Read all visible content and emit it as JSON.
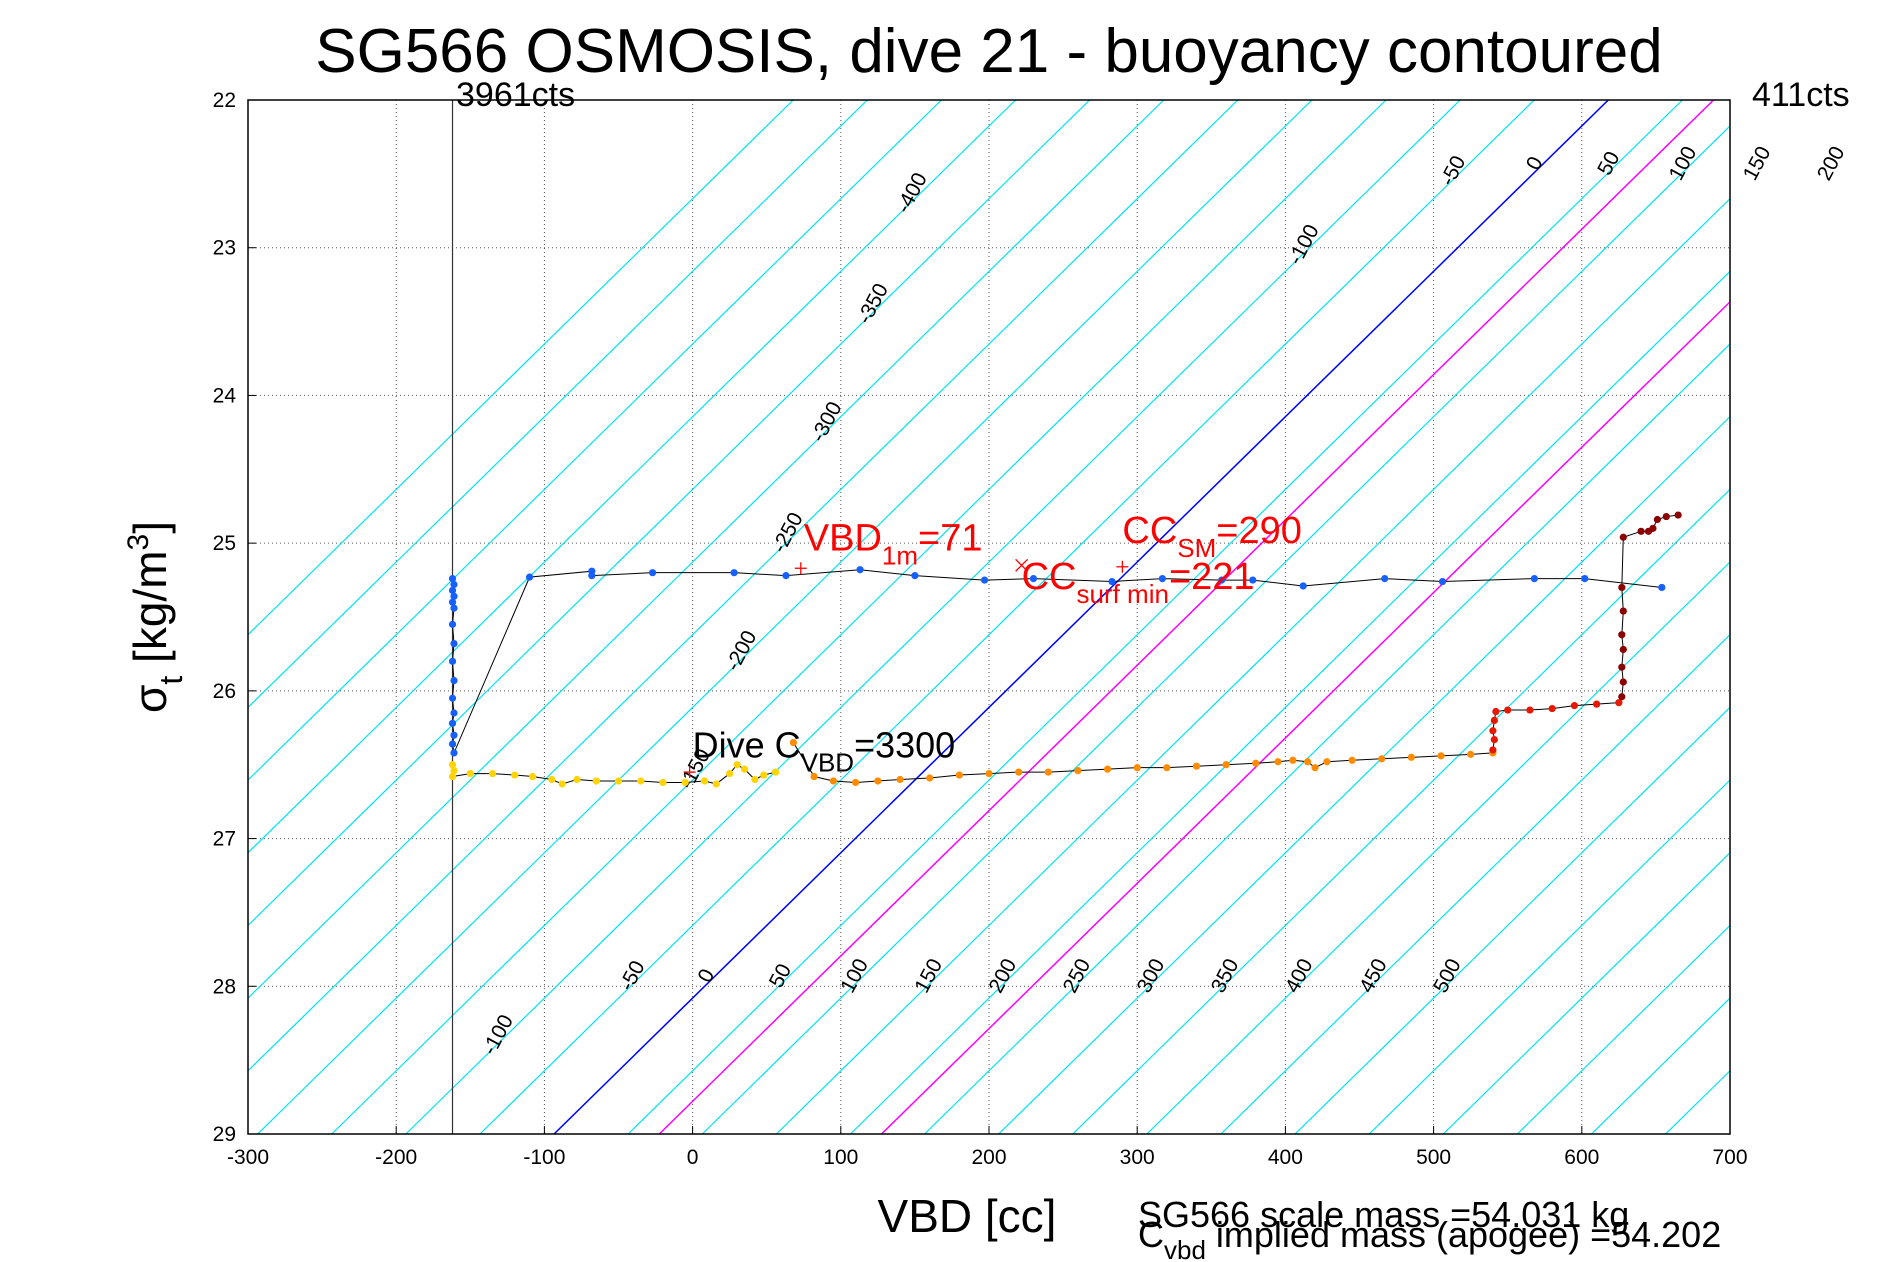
{
  "chart_data": {
    "type": "scatter",
    "title": "SG566 OSMOSIS, dive 21 - buoyancy contoured",
    "xlabel": "VBD [cc]",
    "ylabel": {
      "base": "σ",
      "sub": "t",
      "rest": " [kg/m",
      "sup": "3",
      "close": "]"
    },
    "xlim": [
      -300,
      700
    ],
    "ylim": [
      22,
      29
    ],
    "y_reversed": true,
    "xticks": [
      -300,
      -200,
      -100,
      0,
      100,
      200,
      300,
      400,
      500,
      600,
      700
    ],
    "yticks": [
      22,
      23,
      24,
      25,
      26,
      27,
      28,
      29
    ],
    "grid": true,
    "vbd_counts_labels": {
      "left": "3961cts",
      "right": "411cts"
    },
    "vbd_counts_line_x": -162,
    "contours": {
      "slope_sigma_per_cc": 0.00984,
      "upper_values": [
        -400,
        -350,
        -300,
        -250,
        -200,
        -150,
        -100,
        -50,
        0,
        50,
        100,
        150,
        200,
        250,
        300,
        350,
        400,
        450,
        500
      ],
      "lower_values": [
        -100,
        -50,
        0,
        50,
        100,
        150,
        200,
        250,
        300,
        350,
        400,
        450,
        500
      ],
      "background_values": [
        -550,
        -500,
        -450,
        -400,
        -350,
        -300,
        -250,
        -200,
        -150,
        -100,
        -50,
        0,
        50,
        100,
        150,
        200,
        250,
        300,
        350,
        400,
        450,
        500,
        550,
        600,
        650,
        700,
        750,
        800
      ],
      "blue_line_values": [
        0
      ],
      "magenta_line_values": [
        71,
        221
      ],
      "colors": {
        "background": "#00e5ee",
        "zero": "#0000ff",
        "highlight": "#ff00ff"
      }
    },
    "series": [
      {
        "kind": "climb",
        "color": "#1560ff",
        "points": [
          [
            -162,
            25.24
          ],
          [
            -161,
            25.28
          ],
          [
            -162,
            25.32
          ],
          [
            -161,
            25.36
          ],
          [
            -162,
            25.4
          ],
          [
            -161,
            25.44
          ],
          [
            -162,
            25.55
          ],
          [
            -161,
            25.68
          ],
          [
            -162,
            25.8
          ],
          [
            -161,
            25.93
          ],
          [
            -162,
            26.05
          ],
          [
            -161,
            26.15
          ],
          [
            -162,
            26.22
          ],
          [
            -161,
            26.3
          ],
          [
            -162,
            26.36
          ],
          [
            -161,
            26.42
          ],
          [
            -110,
            25.23
          ],
          [
            -68,
            25.19
          ],
          [
            -68,
            25.22
          ],
          [
            -27,
            25.2
          ],
          [
            28,
            25.2
          ],
          [
            63,
            25.22
          ],
          [
            113,
            25.18
          ],
          [
            150,
            25.22
          ],
          [
            197,
            25.25
          ],
          [
            230,
            25.24
          ],
          [
            283,
            25.26
          ],
          [
            317,
            25.24
          ],
          [
            357,
            25.25
          ],
          [
            378,
            25.25
          ],
          [
            412,
            25.29
          ],
          [
            467,
            25.24
          ],
          [
            506,
            25.26
          ],
          [
            568,
            25.24
          ],
          [
            602,
            25.24
          ],
          [
            654,
            25.3
          ]
        ]
      },
      {
        "kind": "dive-shallow",
        "color": "#ffd400",
        "points": [
          [
            -162,
            26.5
          ],
          [
            -161,
            26.54
          ],
          [
            -162,
            26.58
          ],
          [
            -150,
            26.56
          ],
          [
            -135,
            26.56
          ],
          [
            -120,
            26.57
          ],
          [
            -108,
            26.58
          ],
          [
            -95,
            26.6
          ],
          [
            -88,
            26.63
          ],
          [
            -78,
            26.6
          ],
          [
            -65,
            26.61
          ],
          [
            -50,
            26.61
          ],
          [
            -35,
            26.61
          ],
          [
            -20,
            26.62
          ],
          [
            -5,
            26.62
          ],
          [
            8,
            26.61
          ],
          [
            16,
            26.63
          ],
          [
            25,
            26.56
          ],
          [
            30,
            26.5
          ],
          [
            35,
            26.53
          ],
          [
            42,
            26.6
          ],
          [
            48,
            26.57
          ],
          [
            56,
            26.55
          ]
        ]
      },
      {
        "kind": "dive-mid",
        "color": "#ff8c00",
        "points": [
          [
            68,
            26.35
          ],
          [
            82,
            26.58
          ],
          [
            95,
            26.61
          ],
          [
            110,
            26.62
          ],
          [
            125,
            26.61
          ],
          [
            140,
            26.6
          ],
          [
            160,
            26.59
          ],
          [
            180,
            26.57
          ],
          [
            200,
            26.56
          ],
          [
            220,
            26.55
          ],
          [
            240,
            26.55
          ],
          [
            260,
            26.54
          ],
          [
            280,
            26.53
          ],
          [
            300,
            26.52
          ],
          [
            320,
            26.52
          ],
          [
            340,
            26.51
          ],
          [
            360,
            26.5
          ],
          [
            380,
            26.49
          ],
          [
            395,
            26.48
          ],
          [
            405,
            26.47
          ],
          [
            415,
            26.48
          ],
          [
            420,
            26.52
          ],
          [
            428,
            26.48
          ],
          [
            445,
            26.47
          ],
          [
            465,
            26.46
          ],
          [
            485,
            26.45
          ],
          [
            505,
            26.44
          ],
          [
            525,
            26.43
          ],
          [
            540,
            26.42
          ]
        ]
      },
      {
        "kind": "dive-deep",
        "color": "#e81800",
        "points": [
          [
            540,
            26.4
          ],
          [
            541,
            26.33
          ],
          [
            540,
            26.27
          ],
          [
            541,
            26.2
          ],
          [
            542,
            26.14
          ],
          [
            550,
            26.13
          ],
          [
            565,
            26.13
          ],
          [
            580,
            26.12
          ],
          [
            595,
            26.1
          ],
          [
            610,
            26.09
          ],
          [
            625,
            26.08
          ]
        ]
      },
      {
        "kind": "dive-bottom",
        "color": "#8b0000",
        "points": [
          [
            627,
            26.04
          ],
          [
            628,
            25.94
          ],
          [
            627,
            25.84
          ],
          [
            628,
            25.72
          ],
          [
            627,
            25.62
          ],
          [
            628,
            25.46
          ],
          [
            627,
            25.3
          ],
          [
            628,
            24.96
          ],
          [
            640,
            24.92
          ],
          [
            645,
            24.92
          ],
          [
            648,
            24.9
          ],
          [
            651,
            24.84
          ],
          [
            657,
            24.82
          ],
          [
            665,
            24.81
          ]
        ]
      }
    ],
    "markers": [
      {
        "x": 73,
        "y": 25.17,
        "symbol": "+"
      },
      {
        "x": 222,
        "y": 25.15,
        "symbol": "x"
      },
      {
        "x": 290,
        "y": 25.16,
        "symbol": "+"
      },
      {
        "x": -2,
        "y": 26.55,
        "symbol": "+"
      }
    ],
    "annotations": [
      {
        "id": "vbd1m",
        "text": "VBD",
        "sub": "1m",
        "rest": "=71",
        "x": 73,
        "y": 25.05,
        "color": "red"
      },
      {
        "id": "ccsm",
        "text": "CC",
        "sub": "SM",
        "rest": "=290",
        "x": 290,
        "y": 25.0,
        "color": "red"
      },
      {
        "id": "ccsurf",
        "text": "CC",
        "sub": "surf min",
        "rest": "=221",
        "x": 222,
        "y": 25.31,
        "color": "red"
      },
      {
        "id": "divecvbd",
        "text": "Dive C",
        "sub": "VBD",
        "rest": "=3300",
        "x": 0,
        "y": 26.45,
        "color": "black"
      }
    ]
  },
  "footer": {
    "scale_mass": "SG566 scale mass =54.031 kg",
    "implied_base": "C",
    "implied_sub": "vbd",
    "implied_rest": " implied mass (apogee) =54.202"
  }
}
